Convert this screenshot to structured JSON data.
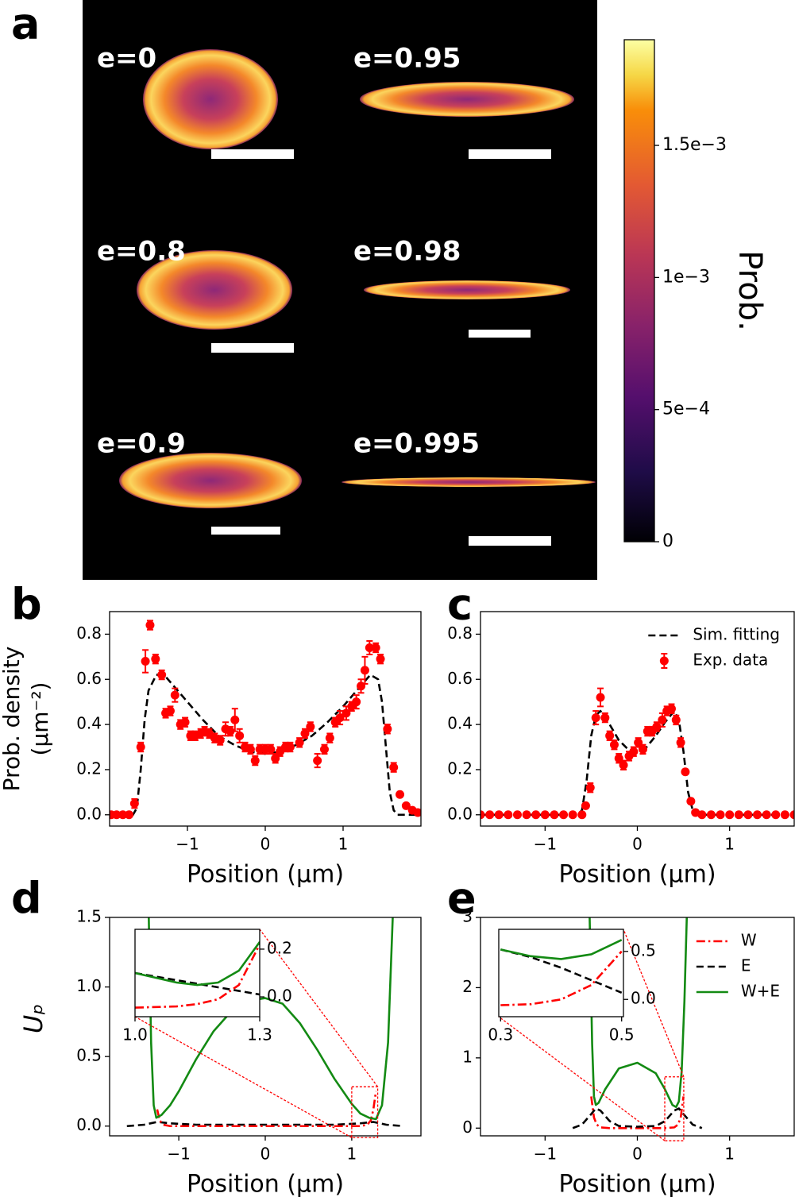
{
  "chart_data": [
    {
      "type": "image",
      "panel": "a",
      "labels": [
        "e=0",
        "e=0.95",
        "e=0.8",
        "e=0.98",
        "e=0.9",
        "e=0.995"
      ],
      "colorbar": {
        "label": "Prob.",
        "lim": [
          0,
          0.0019
        ],
        "ticks": [
          0,
          {
            "value": 0.0005,
            "label": "5e−4"
          },
          {
            "value": 0.001,
            "label": "1e−3"
          },
          {
            "value": 0.0015,
            "label": "1.5e−3"
          }
        ]
      }
    },
    {
      "type": "line",
      "panel": "b",
      "xlabel": "Position (μm)",
      "ylabel": [
        "Prob. density",
        "(μm⁻²)"
      ],
      "xlim": [
        -2,
        2
      ],
      "ylim": [
        -0.05,
        0.9
      ],
      "xticks": [
        {
          "value": -1,
          "label": "−1"
        },
        0,
        1
      ],
      "yticks": [
        {
          "value": 0,
          "label": "0.0"
        },
        0.2,
        0.4,
        0.6,
        0.8
      ],
      "series": [
        {
          "style": "dashed",
          "color": "#000000",
          "x": [
            -2,
            -1.7,
            -1.65,
            -1.6,
            -1.55,
            -1.5,
            -1.4,
            -1.3,
            -1.2,
            -1.0,
            -0.8,
            -0.6,
            -0.4,
            -0.2,
            0,
            0.2,
            0.4,
            0.6,
            0.8,
            1.0,
            1.2,
            1.35,
            1.45,
            1.5,
            1.55,
            1.6,
            1.65,
            1.7,
            2
          ],
          "values": [
            0,
            0,
            0.03,
            0.2,
            0.42,
            0.55,
            0.62,
            0.62,
            0.58,
            0.5,
            0.42,
            0.35,
            0.31,
            0.28,
            0.27,
            0.28,
            0.31,
            0.35,
            0.41,
            0.48,
            0.56,
            0.62,
            0.6,
            0.5,
            0.3,
            0.1,
            0.02,
            0,
            0
          ]
        },
        {
          "style": "errorbar",
          "color": "#ff0000",
          "x": [
            -1.98,
            -1.91,
            -1.83,
            -1.75,
            -1.68,
            -1.6,
            -1.54,
            -1.48,
            -1.41,
            -1.33,
            -1.28,
            -1.22,
            -1.16,
            -1.09,
            -1.03,
            -0.96,
            -0.9,
            -0.83,
            -0.78,
            -0.72,
            -0.65,
            -0.58,
            -0.51,
            -0.45,
            -0.39,
            -0.33,
            -0.26,
            -0.19,
            -0.13,
            -0.07,
            0,
            0.07,
            0.13,
            0.19,
            0.26,
            0.32,
            0.44,
            0.51,
            0.58,
            0.67,
            0.76,
            0.83,
            0.9,
            0.96,
            1.04,
            1.11,
            1.17,
            1.23,
            1.28,
            1.34,
            1.42,
            1.48,
            1.57,
            1.65,
            1.73,
            1.81,
            1.89,
            1.96
          ],
          "values": [
            0,
            0,
            0,
            0,
            0.05,
            0.3,
            0.68,
            0.84,
            0.69,
            0.62,
            0.45,
            0.46,
            0.53,
            0.4,
            0.41,
            0.35,
            0.35,
            0.36,
            0.37,
            0.36,
            0.34,
            0.33,
            0.38,
            0.37,
            0.42,
            0.35,
            0.3,
            0.29,
            0.24,
            0.29,
            0.29,
            0.29,
            0.25,
            0.28,
            0.3,
            0.3,
            0.32,
            0.36,
            0.39,
            0.24,
            0.29,
            0.34,
            0.41,
            0.43,
            0.45,
            0.48,
            0.5,
            0.57,
            0.64,
            0.74,
            0.74,
            0.69,
            0.38,
            0.21,
            0.09,
            0.04,
            0.02,
            0.01
          ],
          "errors": [
            0.01,
            0.01,
            0.01,
            0.01,
            0.02,
            0.02,
            0.05,
            0.02,
            0.02,
            0.02,
            0.02,
            0.02,
            0.03,
            0.02,
            0.02,
            0.02,
            0.02,
            0.02,
            0.02,
            0.02,
            0.02,
            0.02,
            0.03,
            0.02,
            0.05,
            0.03,
            0.02,
            0.02,
            0.02,
            0.02,
            0.02,
            0.02,
            0.02,
            0.02,
            0.02,
            0.02,
            0.02,
            0.02,
            0.02,
            0.03,
            0.02,
            0.02,
            0.02,
            0.03,
            0.03,
            0.02,
            0.03,
            0.03,
            0.06,
            0.03,
            0.02,
            0.02,
            0.02,
            0.02,
            0.01,
            0.01,
            0.01,
            0.01
          ]
        }
      ]
    },
    {
      "type": "line",
      "panel": "c",
      "xlabel": "Position (μm)",
      "legend": "upper right",
      "xlim": [
        -1.7,
        1.7
      ],
      "ylim": [
        -0.05,
        0.9
      ],
      "xticks": [
        {
          "value": -1,
          "label": "−1"
        },
        0,
        1
      ],
      "yticks": [
        {
          "value": 0,
          "label": "0.0"
        },
        0.2,
        0.4,
        0.6,
        0.8
      ],
      "series": [
        {
          "name": "Sim. fitting",
          "style": "dashed",
          "color": "#000000",
          "x": [
            -1.7,
            -0.65,
            -0.6,
            -0.55,
            -0.5,
            -0.45,
            -0.4,
            -0.3,
            -0.2,
            -0.1,
            0,
            0.1,
            0.2,
            0.3,
            0.4,
            0.45,
            0.5,
            0.55,
            0.6,
            0.65,
            1.7
          ],
          "values": [
            0,
            0,
            0.02,
            0.15,
            0.35,
            0.44,
            0.46,
            0.4,
            0.33,
            0.29,
            0.28,
            0.3,
            0.35,
            0.41,
            0.46,
            0.42,
            0.28,
            0.1,
            0.02,
            0,
            0
          ]
        },
        {
          "name": "Exp. data",
          "style": "errorbar",
          "color": "#ff0000",
          "x": [
            -1.7,
            -1.6,
            -1.5,
            -1.4,
            -1.3,
            -1.2,
            -1.1,
            -1.0,
            -0.9,
            -0.8,
            -0.7,
            -0.6,
            -0.56,
            -0.51,
            -0.45,
            -0.4,
            -0.35,
            -0.3,
            -0.25,
            -0.2,
            -0.15,
            -0.09,
            -0.04,
            0.01,
            0.06,
            0.11,
            0.16,
            0.21,
            0.27,
            0.32,
            0.37,
            0.42,
            0.47,
            0.52,
            0.58,
            0.63,
            0.7,
            0.8,
            0.9,
            1.0,
            1.1,
            1.2,
            1.3,
            1.4,
            1.5,
            1.6,
            1.7
          ],
          "values": [
            0,
            0,
            0,
            0,
            0,
            0,
            0,
            0,
            0,
            0,
            0,
            0,
            0.04,
            0.12,
            0.43,
            0.52,
            0.43,
            0.35,
            0.31,
            0.25,
            0.22,
            0.26,
            0.28,
            0.32,
            0.29,
            0.37,
            0.37,
            0.39,
            0.42,
            0.46,
            0.47,
            0.42,
            0.32,
            0.19,
            0.06,
            0.01,
            0,
            0,
            0,
            0,
            0,
            0,
            0,
            0,
            0,
            0,
            0
          ],
          "errors": [
            0.01,
            0.01,
            0.01,
            0.01,
            0.01,
            0.01,
            0.01,
            0.01,
            0.01,
            0.01,
            0.01,
            0.01,
            0.01,
            0.02,
            0.03,
            0.04,
            0.02,
            0.02,
            0.02,
            0.02,
            0.02,
            0.02,
            0.02,
            0.02,
            0.02,
            0.02,
            0.02,
            0.02,
            0.03,
            0.02,
            0.02,
            0.02,
            0.02,
            0.01,
            0.01,
            0.01,
            0.01,
            0.01,
            0.01,
            0.01,
            0.01,
            0.01,
            0.01,
            0.01,
            0.01,
            0.01,
            0.01
          ]
        }
      ]
    },
    {
      "type": "line",
      "panel": "d",
      "xlabel": "Position (μm)",
      "ylabel": "Uₚ",
      "xlim": [
        -1.8,
        1.8
      ],
      "ylim": [
        -0.07,
        1.5
      ],
      "xticks": [
        {
          "value": -1,
          "label": "−1"
        },
        0,
        1
      ],
      "yticks": [
        {
          "value": 0,
          "label": "0.0"
        },
        0.5,
        {
          "value": 1,
          "label": "1.0"
        },
        1.5
      ],
      "series": [
        {
          "style": "dashed",
          "color": "#000000",
          "x": [
            -1.6,
            -1.4,
            -1.25,
            -1.1,
            -0.8,
            0,
            0.8,
            1.1,
            1.25,
            1.4,
            1.6
          ],
          "values": [
            0,
            0.01,
            0.03,
            0.02,
            0.01,
            0.01,
            0.01,
            0.02,
            0.03,
            0.01,
            0
          ]
        },
        {
          "style": "dashdot",
          "color": "#ff0000",
          "x": [
            -1.25,
            -1.22,
            -1.18,
            -1.1,
            -0.8,
            0,
            0.8,
            1.1,
            1.18,
            1.22,
            1.25,
            1.28
          ],
          "values": [
            0.12,
            0.04,
            0.01,
            0,
            0,
            0,
            0,
            0,
            0.01,
            0.04,
            0.12,
            0.25
          ]
        },
        {
          "style": "solid",
          "color": "#138a13",
          "x": [
            -1.35,
            -1.32,
            -1.29,
            -1.26,
            -1.2,
            -1.1,
            -1.0,
            -0.8,
            -0.6,
            -0.4,
            -0.2,
            0,
            0.2,
            0.4,
            0.6,
            0.8,
            1.0,
            1.1,
            1.2,
            1.28,
            1.35,
            1.42,
            1.48
          ],
          "values": [
            1.6,
            0.6,
            0.15,
            0.06,
            0.08,
            0.15,
            0.25,
            0.48,
            0.68,
            0.82,
            0.9,
            0.92,
            0.88,
            0.74,
            0.55,
            0.34,
            0.16,
            0.09,
            0.06,
            0.05,
            0.15,
            0.6,
            1.6
          ]
        }
      ],
      "inset": {
        "xlim": [
          1.0,
          1.3
        ],
        "ylim": [
          -0.083,
          0.283
        ],
        "xticks": [
          {
            "value": 1,
            "label": "1.0"
          },
          1.3
        ],
        "yticks": [
          {
            "value": 0,
            "label": "0.0"
          },
          0.2
        ],
        "series": [
          {
            "style": "dashed",
            "color": "#000000",
            "x": [
              1.0,
              1.1,
              1.2,
              1.3
            ],
            "values": [
              0.1,
              0.07,
              0.04,
              0.01
            ]
          },
          {
            "style": "dashdot",
            "color": "#ff0000",
            "x": [
              1.0,
              1.1,
              1.15,
              1.2,
              1.25,
              1.3
            ],
            "values": [
              -0.045,
              -0.04,
              -0.03,
              -0.01,
              0.05,
              0.22
            ]
          },
          {
            "style": "solid",
            "color": "#138a13",
            "x": [
              1.0,
              1.05,
              1.1,
              1.15,
              1.2,
              1.25,
              1.3
            ],
            "values": [
              0.1,
              0.08,
              0.06,
              0.05,
              0.06,
              0.11,
              0.23
            ]
          }
        ]
      }
    },
    {
      "type": "line",
      "panel": "e",
      "xlabel": "Position (μm)",
      "legend": "upper right",
      "xlim": [
        -1.7,
        1.7
      ],
      "ylim": [
        -0.11,
        3
      ],
      "xticks": [
        {
          "value": -1,
          "label": "−1"
        },
        0,
        1
      ],
      "yticks": [
        0,
        1,
        2,
        3
      ],
      "series": [
        {
          "name": "W",
          "style": "dashdot",
          "color": "#ff0000",
          "x": [
            -0.5,
            -0.47,
            -0.44,
            -0.4,
            -0.3,
            0,
            0.3,
            0.4,
            0.44,
            0.47,
            0.5
          ],
          "values": [
            0.45,
            0.15,
            0.05,
            0.01,
            0,
            0,
            0,
            0.01,
            0.05,
            0.15,
            0.45
          ]
        },
        {
          "name": "E",
          "style": "dashed",
          "color": "#000000",
          "x": [
            -0.7,
            -0.6,
            -0.5,
            -0.45,
            -0.4,
            -0.3,
            -0.2,
            0,
            0.2,
            0.3,
            0.4,
            0.45,
            0.5,
            0.6,
            0.7
          ],
          "values": [
            0,
            0.05,
            0.2,
            0.28,
            0.25,
            0.1,
            0.03,
            0.02,
            0.03,
            0.1,
            0.25,
            0.28,
            0.2,
            0.05,
            0
          ]
        },
        {
          "name": "W+E",
          "style": "solid",
          "color": "#138a13",
          "x": [
            -0.52,
            -0.49,
            -0.47,
            -0.45,
            -0.42,
            -0.35,
            -0.2,
            0,
            0.2,
            0.3,
            0.38,
            0.42,
            0.45,
            0.48,
            0.51,
            0.54
          ],
          "values": [
            3.2,
            1.2,
            0.45,
            0.33,
            0.36,
            0.55,
            0.85,
            0.93,
            0.78,
            0.55,
            0.33,
            0.3,
            0.38,
            0.8,
            1.8,
            3.2
          ]
        }
      ],
      "inset": {
        "xlim": [
          0.297,
          0.503
        ],
        "ylim": [
          -0.18,
          0.73
        ],
        "xticks": [
          0.3,
          0.5
        ],
        "yticks": [
          {
            "value": 0,
            "label": "0.0"
          },
          0.5
        ],
        "series": [
          {
            "style": "dashdot",
            "color": "#ff0000",
            "x": [
              0.3,
              0.35,
              0.4,
              0.45,
              0.5
            ],
            "values": [
              -0.06,
              -0.05,
              0,
              0.15,
              0.5
            ]
          },
          {
            "style": "dashed",
            "color": "#000000",
            "x": [
              0.3,
              0.35,
              0.4,
              0.45,
              0.5
            ],
            "values": [
              0.52,
              0.44,
              0.33,
              0.2,
              0.07
            ]
          },
          {
            "style": "solid",
            "color": "#138a13",
            "x": [
              0.3,
              0.35,
              0.4,
              0.45,
              0.5
            ],
            "values": [
              0.52,
              0.45,
              0.42,
              0.47,
              0.62
            ]
          }
        ]
      }
    }
  ]
}
